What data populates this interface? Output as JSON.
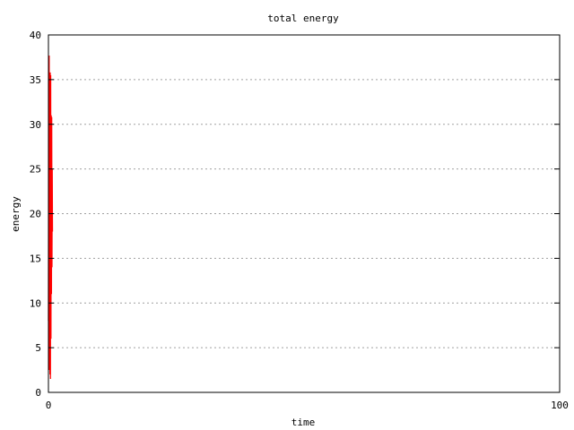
{
  "chart_data": {
    "type": "line",
    "title": "total energy",
    "xlabel": "time",
    "ylabel": "energy",
    "xlim": [
      0,
      100
    ],
    "ylim": [
      0,
      40
    ],
    "xticks": [
      0,
      100
    ],
    "xtick_labels": [
      "0",
      "100"
    ],
    "yticks": [
      0,
      5,
      10,
      15,
      20,
      25,
      30,
      35,
      40
    ],
    "ytick_labels": [
      "0",
      "5",
      "10",
      "15",
      "20",
      "25",
      "30",
      "35",
      "40"
    ],
    "grid": {
      "horizontal": true,
      "vertical": false,
      "style": "dotted"
    },
    "series": [
      {
        "color": "#ff0000",
        "x": [
          0.0,
          0.05,
          0.1,
          0.15,
          0.2,
          0.25,
          0.3,
          0.35,
          0.4,
          0.45,
          0.5,
          0.55,
          0.6,
          0.65,
          0.7,
          0.75,
          0.8
        ],
        "y": [
          8.0,
          36.0,
          2.5,
          37.7,
          3.0,
          35.0,
          2.0,
          35.8,
          1.5,
          35.5,
          6.0,
          31.0,
          11.0,
          30.8,
          14.0,
          25.0,
          18.0
        ]
      }
    ]
  }
}
